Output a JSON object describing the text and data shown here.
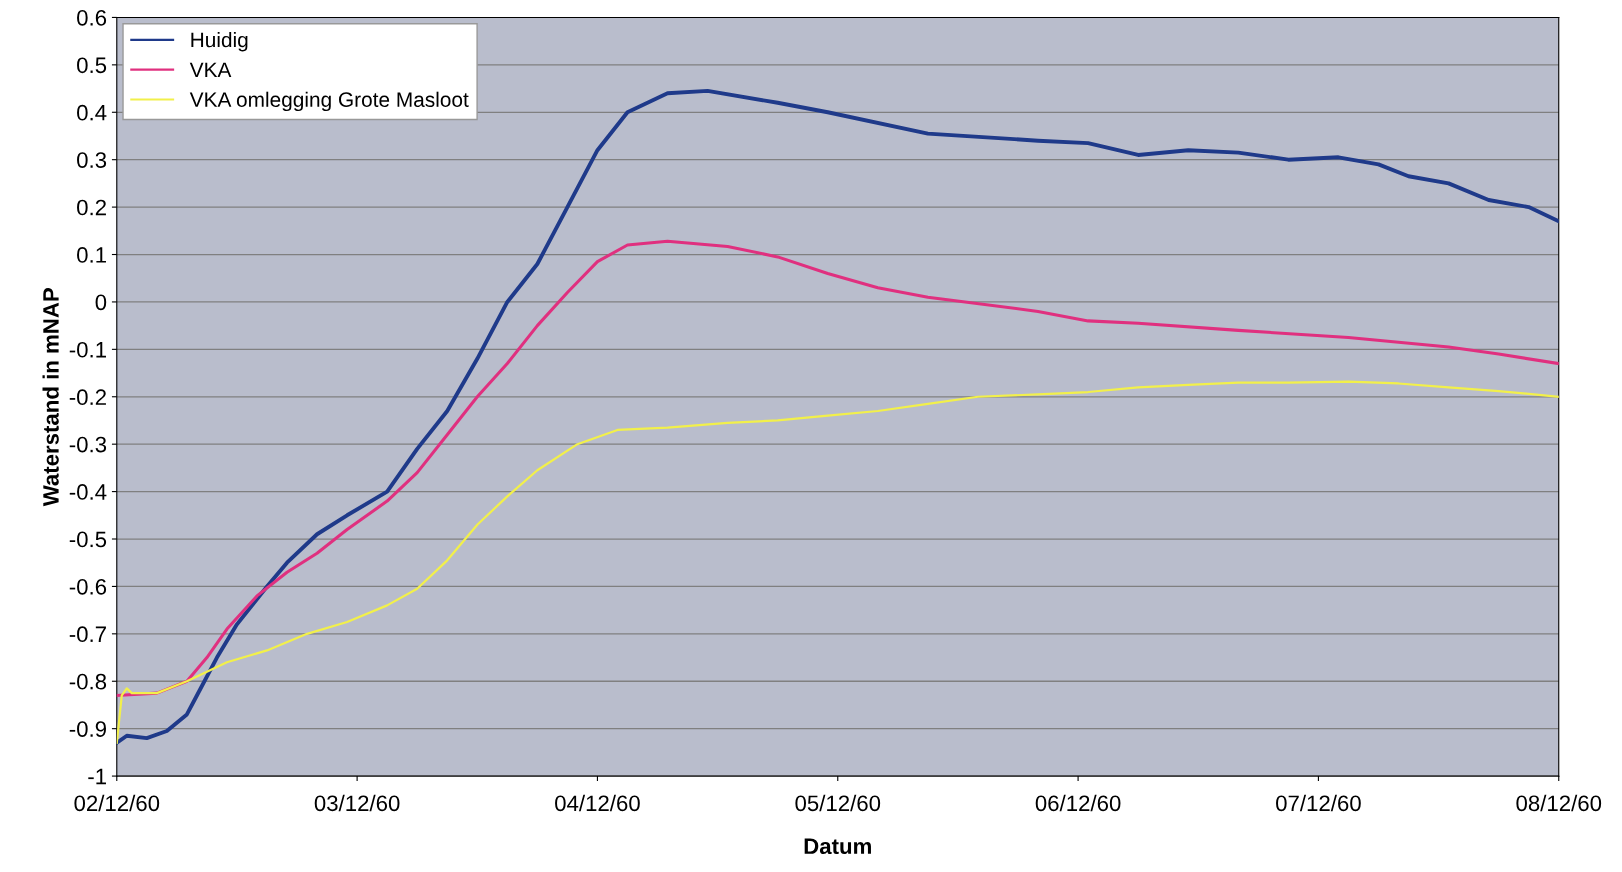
{
  "chart_data": {
    "type": "line",
    "xlabel": "Datum",
    "ylabel": "Waterstand in mNAP",
    "xlim": [
      "1960-12-02",
      "1960-12-08"
    ],
    "xticks": [
      {
        "value": "1960-12-02",
        "label": "02/12/60"
      },
      {
        "value": "1960-12-03",
        "label": "03/12/60"
      },
      {
        "value": "1960-12-04",
        "label": "04/12/60"
      },
      {
        "value": "1960-12-05",
        "label": "05/12/60"
      },
      {
        "value": "1960-12-06",
        "label": "06/12/60"
      },
      {
        "value": "1960-12-07",
        "label": "07/12/60"
      },
      {
        "value": "1960-12-08",
        "label": "08/12/60"
      }
    ],
    "ylim": [
      -1,
      0.6
    ],
    "yticks": [
      -1,
      -0.9,
      -0.8,
      -0.7,
      -0.6,
      -0.5,
      -0.4,
      -0.3,
      -0.2,
      -0.1,
      0,
      0.1,
      0.2,
      0.3,
      0.4,
      0.5,
      0.6
    ],
    "grid": "y",
    "legend": "top left",
    "marker": "none",
    "line_style": "solid",
    "series": [
      {
        "name": "Huidig",
        "color": "#1f3a8a",
        "x": [
          "1960-12-02T00:00",
          "1960-12-02T01:00",
          "1960-12-02T03:00",
          "1960-12-02T05:00",
          "1960-12-02T07:00",
          "1960-12-02T08:00",
          "1960-12-02T10:00",
          "1960-12-02T12:00",
          "1960-12-02T15:00",
          "1960-12-02T17:00",
          "1960-12-02T20:00",
          "1960-12-02T23:00",
          "1960-12-03T03:00",
          "1960-12-03T06:00",
          "1960-12-03T09:00",
          "1960-12-03T12:00",
          "1960-12-03T15:00",
          "1960-12-03T18:00",
          "1960-12-03T21:00",
          "1960-12-04T00:00",
          "1960-12-04T03:00",
          "1960-12-04T07:00",
          "1960-12-04T11:00",
          "1960-12-04T18:00",
          "1960-12-04T23:00",
          "1960-12-05T09:00",
          "1960-12-05T20:00",
          "1960-12-06T01:00",
          "1960-12-06T06:00",
          "1960-12-06T11:00",
          "1960-12-06T16:00",
          "1960-12-06T21:00",
          "1960-12-07T02:00",
          "1960-12-07T06:00",
          "1960-12-07T09:00",
          "1960-12-07T13:00",
          "1960-12-07T17:00",
          "1960-12-07T21:00",
          "1960-12-08T00:00"
        ],
        "values": [
          -0.93,
          -0.915,
          -0.92,
          -0.905,
          -0.87,
          -0.83,
          -0.75,
          -0.68,
          -0.6,
          -0.55,
          -0.49,
          -0.45,
          -0.4,
          -0.31,
          -0.23,
          -0.12,
          0.0,
          0.08,
          0.2,
          0.32,
          0.4,
          0.44,
          0.445,
          0.42,
          0.4,
          0.355,
          0.34,
          0.335,
          0.31,
          0.32,
          0.315,
          0.3,
          0.305,
          0.29,
          0.265,
          0.25,
          0.215,
          0.2,
          0.17
        ]
      },
      {
        "name": "VKA",
        "color": "#e0307f",
        "x": [
          "1960-12-02T00:00",
          "1960-12-02T04:00",
          "1960-12-02T07:00",
          "1960-12-02T09:00",
          "1960-12-02T11:00",
          "1960-12-02T14:00",
          "1960-12-02T17:00",
          "1960-12-02T20:00",
          "1960-12-02T23:00",
          "1960-12-03T03:00",
          "1960-12-03T06:00",
          "1960-12-03T09:00",
          "1960-12-03T12:00",
          "1960-12-03T15:00",
          "1960-12-03T18:00",
          "1960-12-03T21:00",
          "1960-12-04T00:00",
          "1960-12-04T03:00",
          "1960-12-04T07:00",
          "1960-12-04T13:00",
          "1960-12-04T18:00",
          "1960-12-04T23:00",
          "1960-12-05T04:00",
          "1960-12-05T09:00",
          "1960-12-05T20:00",
          "1960-12-06T01:00",
          "1960-12-06T06:00",
          "1960-12-06T16:00",
          "1960-12-07T03:00",
          "1960-12-07T13:00",
          "1960-12-07T18:00",
          "1960-12-08T00:00"
        ],
        "values": [
          -0.83,
          -0.825,
          -0.8,
          -0.75,
          -0.69,
          -0.62,
          -0.57,
          -0.53,
          -0.48,
          -0.42,
          -0.36,
          -0.28,
          -0.2,
          -0.13,
          -0.05,
          0.02,
          0.085,
          0.12,
          0.128,
          0.117,
          0.095,
          0.06,
          0.03,
          0.01,
          -0.02,
          -0.04,
          -0.045,
          -0.06,
          -0.075,
          -0.095,
          -0.11,
          -0.13
        ]
      },
      {
        "name": "VKA omlegging Grote Masloot",
        "color": "#f2f04a",
        "x": [
          "1960-12-02T00:00",
          "1960-12-02T00:30",
          "1960-12-02T01:00",
          "1960-12-02T01:30",
          "1960-12-02T04:00",
          "1960-12-02T07:00",
          "1960-12-02T11:00",
          "1960-12-02T15:00",
          "1960-12-02T19:00",
          "1960-12-02T23:00",
          "1960-12-03T03:00",
          "1960-12-03T06:00",
          "1960-12-03T09:00",
          "1960-12-03T12:00",
          "1960-12-03T15:00",
          "1960-12-03T18:00",
          "1960-12-03T22:00",
          "1960-12-04T02:00",
          "1960-12-04T07:00",
          "1960-12-04T13:00",
          "1960-12-04T18:00",
          "1960-12-04T23:00",
          "1960-12-05T04:00",
          "1960-12-05T09:00",
          "1960-12-05T14:00",
          "1960-12-05T20:00",
          "1960-12-06T01:00",
          "1960-12-06T06:00",
          "1960-12-06T11:00",
          "1960-12-06T16:00",
          "1960-12-06T21:00",
          "1960-12-07T03:00",
          "1960-12-07T08:00",
          "1960-12-07T13:00",
          "1960-12-07T18:00",
          "1960-12-08T00:00"
        ],
        "values": [
          -0.93,
          -0.83,
          -0.815,
          -0.825,
          -0.825,
          -0.8,
          -0.76,
          -0.735,
          -0.7,
          -0.675,
          -0.64,
          -0.605,
          -0.545,
          -0.47,
          -0.41,
          -0.355,
          -0.3,
          -0.27,
          -0.265,
          -0.255,
          -0.25,
          -0.24,
          -0.23,
          -0.215,
          -0.2,
          -0.195,
          -0.19,
          -0.18,
          -0.175,
          -0.17,
          -0.17,
          -0.168,
          -0.172,
          -0.18,
          -0.188,
          -0.2
        ]
      }
    ]
  }
}
